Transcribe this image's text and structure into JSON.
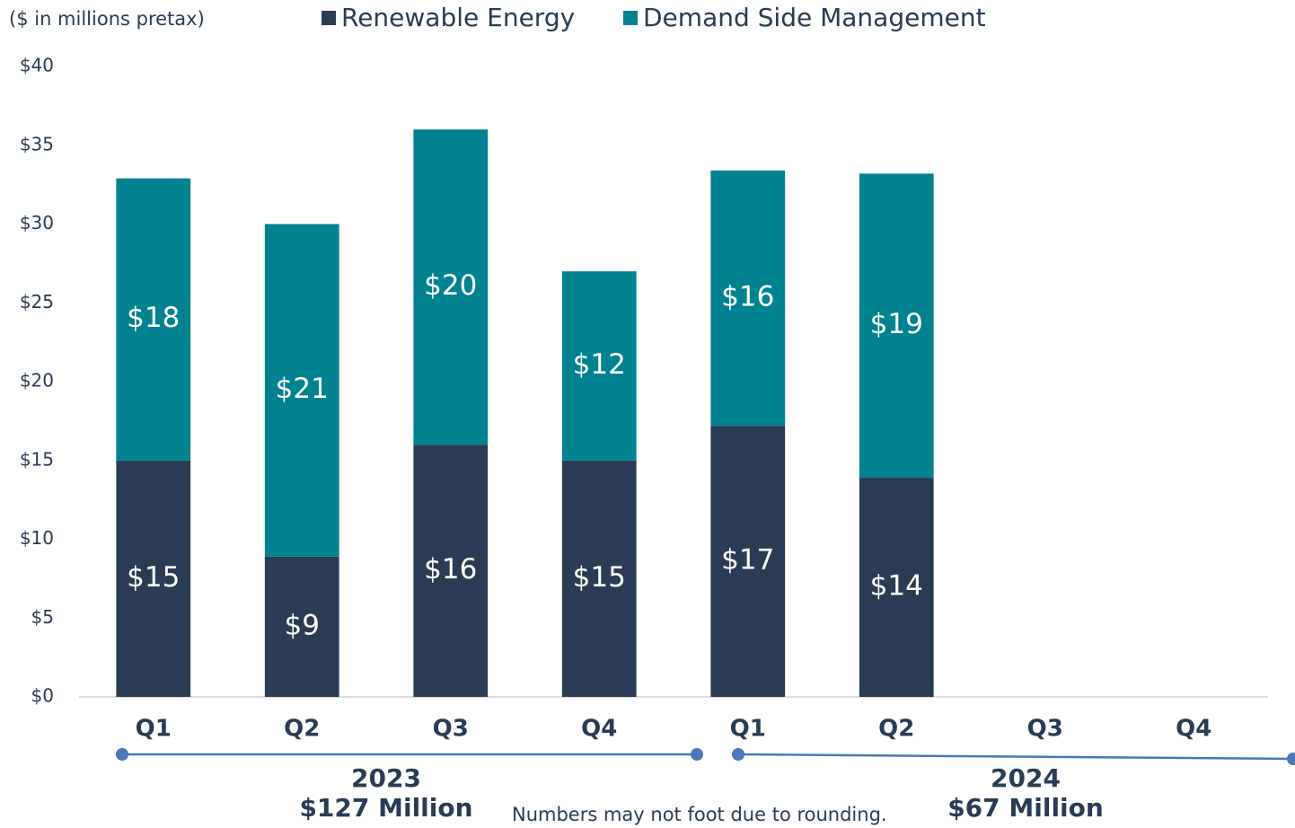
{
  "chart_data": {
    "type": "stacked_bar",
    "subtitle": "($ in millions pretax)",
    "note": "Numbers may not foot due to rounding.",
    "categories": [
      "Q1",
      "Q2",
      "Q3",
      "Q4",
      "Q1",
      "Q2",
      "Q3",
      "Q4"
    ],
    "groups": [
      {
        "label": "2023",
        "total": "$127 Million"
      },
      {
        "label": "2024",
        "total": "$67 Million"
      }
    ],
    "series": [
      {
        "name": "Renewable Energy",
        "color": "#293c53",
        "values": [
          15,
          8.9,
          16,
          15,
          17.2,
          13.9,
          null,
          null
        ],
        "value_labels": [
          "$15",
          "$9",
          "$16",
          "$15",
          "$17",
          "$14",
          null,
          null
        ]
      },
      {
        "name": "Demand Side Management",
        "color": "#008291",
        "values": [
          17.9,
          21.1,
          20,
          12,
          16.2,
          19.3,
          null,
          null
        ],
        "value_labels": [
          "$18",
          "$21",
          "$20",
          "$12",
          "$16",
          "$19",
          null,
          null
        ]
      }
    ],
    "ylim": [
      0,
      40
    ],
    "yticks": [
      {
        "value": 0,
        "label": "$0"
      },
      {
        "value": 5,
        "label": "$5"
      },
      {
        "value": 10,
        "label": "$10"
      },
      {
        "value": 15,
        "label": "$15"
      },
      {
        "value": 20,
        "label": "$20"
      },
      {
        "value": 25,
        "label": "$25"
      },
      {
        "value": 30,
        "label": "$30"
      },
      {
        "value": 35,
        "label": "$35"
      },
      {
        "value": 40,
        "label": "$40"
      }
    ]
  }
}
